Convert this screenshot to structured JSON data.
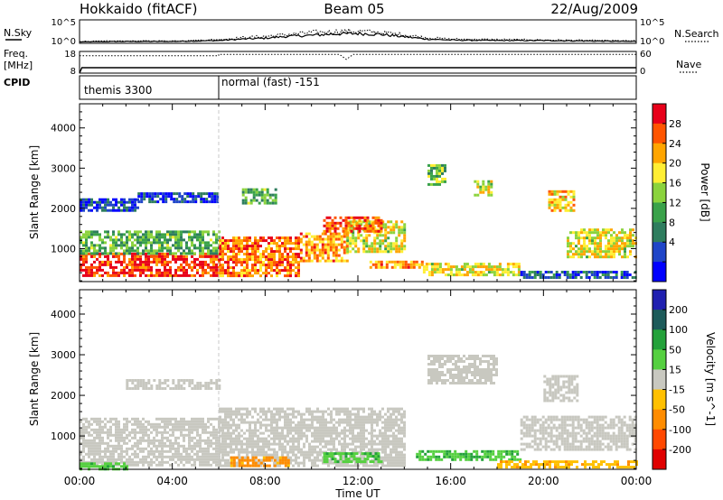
{
  "header": {
    "station": "Hokkaido (fitACF)",
    "beam": "Beam 05",
    "date": "22/Aug/2009"
  },
  "left_labels": {
    "nsky": "N.Sky",
    "freq_line1": "Freq.",
    "freq_line2": "[MHz]",
    "cpid": "CPID"
  },
  "right_labels": {
    "nsearch": "N.Search",
    "nave": "Nave"
  },
  "mini_axes": {
    "noise_ticks_left": [
      "10^5",
      "10^0"
    ],
    "noise_ticks_right": [
      "10^5",
      "10^0"
    ],
    "freq_ticks_left": [
      "18",
      "8"
    ],
    "nave_ticks_right": [
      "60",
      "0"
    ]
  },
  "cpid": {
    "segments": [
      {
        "start_hour": 0,
        "label": "themis 3300"
      },
      {
        "start_hour": 6,
        "label": "normal (fast) -151"
      }
    ]
  },
  "axes": {
    "ylabel": "Slant Range [km]",
    "xlabel": "Time UT"
  },
  "colors": {
    "power_scale": [
      "#0000ff",
      "#1f45c8",
      "#2e7d5e",
      "#3aa24a",
      "#8bd33d",
      "#ffee33",
      "#ffa500",
      "#ff5500",
      "#e8001a"
    ],
    "velocity_scale": [
      "#2020b0",
      "#1d5b5a",
      "#23a13a",
      "#55d040",
      "#c8c8c0",
      "#ffc000",
      "#ff8c00",
      "#ff4800",
      "#e00000"
    ],
    "bg": "#ffffff"
  },
  "chart_data": [
    {
      "type": "line",
      "title": "N.Sky / N.Search",
      "x_unit": "hour UT",
      "xlim": [
        0,
        24
      ],
      "ylim_log10": [
        0,
        5
      ],
      "series": [
        {
          "name": "N.Sky",
          "x": [
            0,
            2,
            4,
            6,
            7,
            8,
            9,
            10,
            11,
            12,
            13,
            14,
            15,
            16,
            18,
            20,
            22,
            24
          ],
          "y_log10": [
            0.3,
            0.4,
            0.4,
            0.6,
            0.9,
            1.1,
            1.5,
            1.7,
            2.0,
            2.1,
            1.9,
            1.4,
            0.9,
            0.7,
            0.6,
            0.6,
            0.5,
            0.4
          ]
        },
        {
          "name": "N.Search",
          "x": [
            0,
            2,
            4,
            6,
            7,
            8,
            9,
            10,
            11,
            12,
            13,
            14,
            15,
            16,
            18,
            20,
            22,
            24
          ],
          "y_log10": [
            0.4,
            0.5,
            0.5,
            0.8,
            1.2,
            1.5,
            1.9,
            2.3,
            2.5,
            2.6,
            2.3,
            1.8,
            1.2,
            0.9,
            0.8,
            0.7,
            0.6,
            0.5
          ]
        }
      ]
    },
    {
      "type": "line",
      "title": "Freq. / Nave",
      "x_unit": "hour UT",
      "xlim": [
        0,
        24
      ],
      "series": [
        {
          "name": "Freq. [MHz]",
          "x": [
            0,
            0.1,
            24
          ],
          "y": [
            8,
            10.5,
            10.5
          ]
        },
        {
          "name": "Nave",
          "x": [
            0,
            6,
            6,
            11.2,
            11.5,
            11.8,
            24
          ],
          "y": [
            48,
            48,
            52,
            52,
            38,
            52,
            52
          ]
        }
      ]
    },
    {
      "type": "heatmap",
      "variable": "Power [dB]",
      "x_unit": "hour UT",
      "xlim": [
        0,
        24
      ],
      "ylim": [
        180,
        4600
      ],
      "x_ticks": [
        "00:00",
        "04:00",
        "08:00",
        "12:00",
        "16:00",
        "20:00",
        "00:00"
      ],
      "x_tick_hours": [
        0,
        4,
        8,
        12,
        16,
        20,
        24
      ],
      "y_ticks": [
        1000,
        2000,
        3000,
        4000
      ],
      "colorbar_label": "Power [dB]",
      "colorbar_ticks": [
        4,
        8,
        12,
        16,
        20,
        24,
        28
      ],
      "colorbar_range": [
        0,
        30
      ],
      "echo_regions": [
        {
          "t0": 0.0,
          "t1": 6.0,
          "r0": 300,
          "r1": 900,
          "value": 27
        },
        {
          "t0": 0.0,
          "t1": 6.0,
          "r0": 900,
          "r1": 1450,
          "value": 12
        },
        {
          "t0": 0.0,
          "t1": 2.5,
          "r0": 1950,
          "r1": 2250,
          "value": 5
        },
        {
          "t0": 2.5,
          "t1": 6.0,
          "r0": 2150,
          "r1": 2400,
          "value": 4
        },
        {
          "t0": 6.0,
          "t1": 9.5,
          "r0": 300,
          "r1": 1300,
          "value": 24
        },
        {
          "t0": 9.5,
          "t1": 11.5,
          "r0": 700,
          "r1": 1400,
          "value": 22
        },
        {
          "t0": 11.5,
          "t1": 14.0,
          "r0": 900,
          "r1": 1700,
          "value": 18
        },
        {
          "t0": 10.5,
          "t1": 13.0,
          "r0": 1400,
          "r1": 1800,
          "value": 25
        },
        {
          "t0": 12.5,
          "t1": 14.8,
          "r0": 500,
          "r1": 700,
          "value": 22
        },
        {
          "t0": 14.8,
          "t1": 19.0,
          "r0": 350,
          "r1": 650,
          "value": 18
        },
        {
          "t0": 19.0,
          "t1": 24.0,
          "r0": 300,
          "r1": 450,
          "value": 6
        },
        {
          "t0": 7.0,
          "t1": 8.5,
          "r0": 2100,
          "r1": 2500,
          "value": 12
        },
        {
          "t0": 15.0,
          "t1": 15.8,
          "r0": 2600,
          "r1": 3100,
          "value": 14
        },
        {
          "t0": 17.0,
          "t1": 17.8,
          "r0": 2300,
          "r1": 2700,
          "value": 17
        },
        {
          "t0": 20.2,
          "t1": 21.3,
          "r0": 1950,
          "r1": 2450,
          "value": 20
        },
        {
          "t0": 21.0,
          "t1": 24.0,
          "r0": 800,
          "r1": 1500,
          "value": 18
        }
      ]
    },
    {
      "type": "heatmap",
      "variable": "Velocity [m s^-1]",
      "x_unit": "hour UT",
      "xlim": [
        0,
        24
      ],
      "ylim": [
        180,
        4600
      ],
      "x_ticks": [
        "00:00",
        "04:00",
        "08:00",
        "12:00",
        "16:00",
        "20:00",
        "00:00"
      ],
      "x_tick_hours": [
        0,
        4,
        8,
        12,
        16,
        20,
        24
      ],
      "y_ticks": [
        1000,
        2000,
        3000,
        4000
      ],
      "colorbar_label": "Velocity [m s^-1]",
      "colorbar_ticks": [
        200,
        100,
        50,
        15,
        -15,
        -50,
        -100,
        -200
      ],
      "colorbar_range": [
        -250,
        250
      ],
      "echo_regions": [
        {
          "t0": 0.0,
          "t1": 6.0,
          "r0": 300,
          "r1": 1450,
          "value": 0
        },
        {
          "t0": 0.0,
          "t1": 2.0,
          "r0": 200,
          "r1": 350,
          "value": 40
        },
        {
          "t0": 2.0,
          "t1": 6.0,
          "r0": 2150,
          "r1": 2400,
          "value": 0
        },
        {
          "t0": 6.0,
          "t1": 14.0,
          "r0": 300,
          "r1": 1700,
          "value": 0
        },
        {
          "t0": 6.5,
          "t1": 9.0,
          "r0": 250,
          "r1": 500,
          "value": -60
        },
        {
          "t0": 10.5,
          "t1": 13.0,
          "r0": 350,
          "r1": 600,
          "value": 40
        },
        {
          "t0": 14.5,
          "t1": 19.0,
          "r0": 400,
          "r1": 650,
          "value": 45
        },
        {
          "t0": 18.0,
          "t1": 24.0,
          "r0": 250,
          "r1": 400,
          "value": -40
        },
        {
          "t0": 19.0,
          "t1": 24.0,
          "r0": 700,
          "r1": 1500,
          "value": 0
        },
        {
          "t0": 15.0,
          "t1": 18.0,
          "r0": 2300,
          "r1": 3000,
          "value": 0
        },
        {
          "t0": 20.0,
          "t1": 21.5,
          "r0": 1900,
          "r1": 2500,
          "value": 0
        }
      ]
    }
  ]
}
